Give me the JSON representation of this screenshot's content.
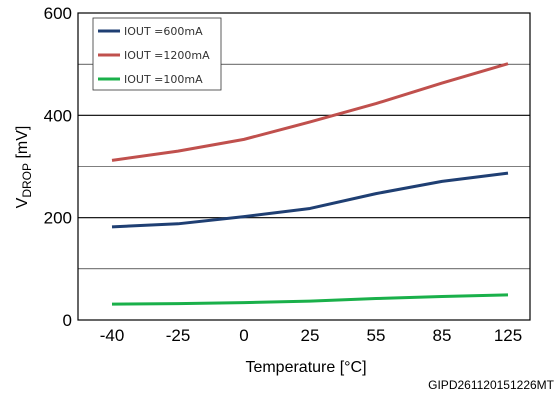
{
  "chart_data": {
    "type": "line",
    "xlabel": "Temperature [°C]",
    "ylabel": {
      "main": "V",
      "sub": "DROP",
      "unit": " [mV]"
    },
    "categories": [
      "-40",
      "-25",
      "0",
      "25",
      "55",
      "85",
      "125"
    ],
    "y_ticks": [
      "0",
      "200",
      "400",
      "600"
    ],
    "ylim": [
      0,
      600
    ],
    "grid_y": [
      100,
      200,
      300,
      400,
      500
    ],
    "legend_position": "top-left",
    "series": [
      {
        "name": "IOUT =600mA",
        "color": "#1f3f73",
        "values": [
          182,
          188,
          202,
          218,
          247,
          271,
          287
        ]
      },
      {
        "name": "IOUT =1200mA",
        "color": "#c0504d",
        "values": [
          312,
          330,
          353,
          387,
          423,
          463,
          501
        ]
      },
      {
        "name": "IOUT =100mA",
        "color": "#1ab04a",
        "values": [
          31,
          32,
          34,
          37,
          42,
          46,
          49
        ]
      }
    ]
  },
  "figure_code": "GIPD261120151226MT"
}
